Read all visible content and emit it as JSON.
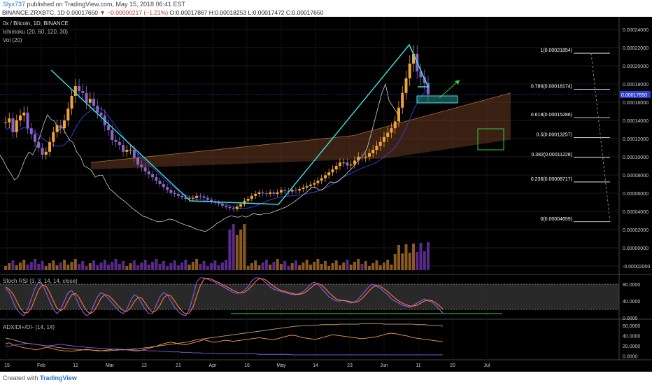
{
  "header": {
    "user": "Slyx737",
    "published": "published on TradingView.com, May 15, 2018 06:41 EST",
    "symbol": "BINANCE:ZRXBTC, 1D",
    "last": "0.00017650",
    "change": "▼ −0.00000217 (−1.21%)",
    "ohlc": "O:0.00017867 H:0.00018253 L:0.00017472 C:0.00017650"
  },
  "legend": {
    "title": "0x / Bitcoin, 1D, BINANCE",
    "ichimoku": "Ichimoku (20, 60, 120, 30)",
    "vol": "Vol (20)",
    "stoch": "Stoch RSI (3, 3, 14, 14, close)",
    "adx": "ADX/DI+/DI- (14, 14)"
  },
  "footer": {
    "created_with": "Created with",
    "brand": "TradingView"
  },
  "colors": {
    "background": "#000000",
    "candle_up": "#f0a43a",
    "candle_down": "#8a64c8",
    "trendline": "#3ce0e0",
    "fib": "#ffffff",
    "cloud": "#6a3a20",
    "stoch_k": "#8a5cf0",
    "stoch_d": "#ff7a3a",
    "support": "#33cc44"
  },
  "chart_data": [
    {
      "type": "candlestick",
      "title": "0x / Bitcoin, 1D, BINANCE",
      "x_ticks": [
        "15",
        "Feb",
        "12",
        "Mar",
        "12",
        "21",
        "Apr",
        "16",
        "May",
        "14",
        "23",
        "Jun",
        "11",
        "20",
        "Jul"
      ],
      "y_ticks": [
        "0.00024000",
        "0.00022000",
        "0.00020000",
        "0.00018000",
        "0.00016000",
        "0.00014000",
        "0.00012000",
        "0.00010000",
        "0.00008000",
        "0.00006000",
        "0.00004000",
        "0.00002000",
        "0.00000000",
        "-0.00002000"
      ],
      "ylim": [
        -2e-05,
        0.00025
      ],
      "last_price_label": "0.00017650",
      "series": [
        {
          "name": "close",
          "values": [
            0.000148,
            0.000152,
            0.000138,
            0.00015,
            0.000155,
            0.000158,
            0.000142,
            0.000136,
            0.000128,
            0.000122,
            0.000115,
            0.000118,
            0.000128,
            0.000138,
            0.000145,
            0.000142,
            0.00015,
            0.000162,
            0.000175,
            0.000185,
            0.00018,
            0.000178,
            0.000168,
            0.000172,
            0.000165,
            0.000158,
            0.000155,
            0.000145,
            0.00014,
            0.00013,
            0.000128,
            0.000125,
            0.000118,
            0.00012,
            0.00012,
            0.000112,
            0.000105,
            0.000102,
            9.8e-05,
            9.5e-05,
            9.2e-05,
            8.85e-05,
            8.5e-05,
            8.2e-05,
            7.9e-05,
            7.6e-05,
            7.5e-05,
            7.3e-05,
            7.15e-05,
            7e-05,
            7.05e-05,
            7.1e-05,
            7.3e-05,
            7.25e-05,
            7.1e-05,
            6.9e-05,
            6.75e-05,
            6.6e-05,
            6.5e-05,
            6.3e-05,
            6.15e-05,
            6.05e-05,
            5.95e-05,
            6.2e-05,
            6.45e-05,
            6.8e-05,
            7e-05,
            7.3e-05,
            7.5e-05,
            7.65e-05,
            7.55e-05,
            7.5e-05,
            7.65e-05,
            7.5e-05,
            7.65e-05,
            7.9e-05,
            7.8e-05,
            7.75e-05,
            7.9e-05,
            7.85e-05,
            8e-05,
            8.15e-05,
            8.3e-05,
            8.45e-05,
            8.6e-05,
            8.85e-05,
            9.1e-05,
            9.4e-05,
            9.7e-05,
            0.0001,
            0.0001035,
            0.000107,
            0.000107,
            0.000104,
            0.000105,
            0.000109,
            0.000113,
            0.000112,
            0.000113,
            0.0001165,
            0.00012,
            0.000124,
            0.000128,
            0.000133,
            0.0001375,
            0.000142,
            0.000149,
            0.000163,
            0.000178,
            0.000193,
            0.000208,
            0.000218,
            0.0002,
            0.000194,
            0.000188,
            0.0001765
          ]
        },
        {
          "name": "fib",
          "values": [
            "1(0.00021854)",
            "0.786(0.00018174)",
            "0.618(0.00015286)",
            "0.5(0.00013257)",
            "0.382(0.00011228)",
            "0.236(0.00008717)",
            "0(0.00004659)"
          ]
        }
      ]
    },
    {
      "type": "line",
      "title": "Stoch RSI (3, 3, 14, 14, close)",
      "y_ticks": [
        "80.0000",
        "40.0000",
        "0.0000"
      ],
      "ylim": [
        0,
        100
      ],
      "series": [
        {
          "name": "K",
          "values": [
            70,
            60,
            40,
            20,
            10,
            5,
            20,
            45,
            70,
            85,
            80,
            60,
            40,
            20,
            10,
            20,
            40,
            60,
            65,
            50,
            30,
            15,
            5,
            10,
            30,
            50,
            60,
            55,
            45,
            35,
            25,
            15,
            10,
            20,
            40,
            55,
            50,
            35,
            20,
            10,
            10,
            30,
            50,
            60,
            55,
            40,
            25,
            15,
            8,
            5,
            20,
            50,
            85,
            95,
            95,
            92,
            88,
            85,
            80,
            75,
            70,
            65,
            60,
            58,
            60,
            65,
            75,
            88,
            95,
            95,
            90,
            82,
            74,
            68,
            65,
            63,
            60,
            58,
            55,
            55,
            58,
            62,
            70,
            80,
            85,
            80,
            70,
            60,
            50,
            45,
            40,
            40,
            42,
            38,
            35,
            38,
            45,
            55,
            65,
            75,
            80,
            75,
            70,
            62,
            55,
            45,
            40,
            35,
            30,
            28,
            25,
            30,
            35,
            40,
            45,
            40,
            38,
            30,
            20,
            12
          ]
        },
        {
          "name": "D",
          "values": [
            74,
            67,
            57,
            40,
            23,
            12,
            12,
            23,
            45,
            67,
            78,
            75,
            60,
            40,
            23,
            17,
            23,
            40,
            55,
            58,
            48,
            32,
            17,
            10,
            15,
            30,
            47,
            55,
            53,
            45,
            35,
            25,
            17,
            15,
            23,
            38,
            48,
            47,
            35,
            22,
            13,
            17,
            30,
            47,
            55,
            52,
            40,
            27,
            16,
            9,
            11,
            25,
            52,
            77,
            92,
            94,
            92,
            88,
            84,
            79,
            75,
            70,
            65,
            61,
            59,
            61,
            67,
            76,
            86,
            93,
            93,
            89,
            82,
            75,
            69,
            65,
            63,
            60,
            58,
            56,
            56,
            58,
            63,
            71,
            78,
            82,
            78,
            70,
            60,
            52,
            45,
            42,
            41,
            40,
            38,
            37,
            39,
            46,
            55,
            65,
            73,
            77,
            75,
            69,
            62,
            54,
            47,
            40,
            35,
            31,
            28,
            28,
            30,
            35,
            40,
            42,
            41,
            36,
            29,
            21
          ]
        }
      ]
    },
    {
      "type": "line",
      "title": "ADX/DI+/DI- (14, 14)",
      "y_ticks": [
        "60.0000",
        "40.0000",
        "20.0000",
        "0.0000"
      ],
      "ylim": [
        -5,
        70
      ],
      "series": [
        {
          "name": "ADX",
          "values": [
            35,
            34,
            32,
            30,
            28,
            26,
            25,
            24,
            23,
            22,
            21,
            20,
            19,
            18,
            17,
            16,
            15,
            14,
            14,
            13,
            13,
            12,
            12,
            12,
            11,
            11,
            10,
            10,
            10,
            11,
            11,
            12,
            12,
            13,
            13,
            14,
            14,
            15,
            16,
            17,
            18,
            19,
            20,
            21,
            22,
            23,
            24,
            25,
            26,
            27,
            28,
            30,
            32,
            33,
            34,
            35,
            36,
            37,
            38,
            39,
            40,
            41,
            42,
            43,
            44,
            45,
            46,
            47,
            48,
            49,
            50,
            51,
            52,
            53,
            54,
            55,
            56,
            57,
            58,
            59,
            59,
            60,
            60,
            60,
            61,
            61,
            62,
            62,
            62,
            62,
            62,
            63,
            63,
            63,
            63,
            63,
            63,
            64,
            64,
            64,
            64,
            64,
            64,
            63,
            63,
            63,
            63,
            63,
            63,
            63,
            63,
            63,
            62,
            62,
            62,
            61,
            61,
            60,
            60,
            59
          ]
        },
        {
          "name": "DI+",
          "values": [
            24,
            26,
            22,
            20,
            18,
            16,
            15,
            14,
            12,
            13,
            15,
            17,
            16,
            14,
            12,
            11,
            10,
            10,
            9,
            10,
            11,
            12,
            13,
            12,
            11,
            10,
            10,
            11,
            12,
            13,
            14,
            13,
            12,
            12,
            11,
            10,
            10,
            11,
            13,
            15,
            17,
            19,
            22,
            24,
            26,
            27,
            26,
            24,
            23,
            22,
            24,
            26,
            28,
            30,
            32,
            30,
            28,
            27,
            28,
            30,
            31,
            30,
            29,
            30,
            31,
            32,
            33,
            34,
            35,
            36,
            35,
            34,
            33,
            32,
            34,
            36,
            38,
            40,
            41,
            40,
            38,
            36,
            35,
            34,
            33,
            34,
            36,
            38,
            40,
            42,
            41,
            40,
            39,
            38,
            37,
            36,
            35,
            34,
            35,
            36,
            37,
            38,
            40,
            42,
            44,
            45,
            44,
            43,
            41,
            40,
            38,
            36,
            35,
            34,
            33,
            32,
            31,
            30,
            29,
            28
          ]
        },
        {
          "name": "DI-",
          "values": [
            20,
            19,
            21,
            22,
            23,
            24,
            25,
            24,
            23,
            22,
            21,
            20,
            20,
            21,
            22,
            23,
            22,
            21,
            20,
            19,
            18,
            18,
            17,
            16,
            16,
            15,
            15,
            15,
            14,
            14,
            13,
            13,
            13,
            12,
            12,
            12,
            11,
            11,
            11,
            10,
            10,
            10,
            9,
            9,
            9,
            8,
            8,
            8,
            7,
            7,
            7,
            6,
            6,
            6,
            5,
            5,
            5,
            5,
            4,
            4,
            4,
            4,
            4,
            4,
            4,
            4,
            4,
            4,
            4,
            3,
            3,
            3,
            3,
            3,
            3,
            3,
            3,
            3,
            2,
            2,
            2,
            2,
            2,
            2,
            2,
            2,
            2,
            2,
            2,
            2,
            2,
            2,
            2,
            2,
            2,
            2,
            2,
            2,
            2,
            2,
            2,
            2,
            2,
            2,
            2,
            2,
            2,
            2,
            2,
            2,
            2,
            2,
            2,
            2,
            2,
            2,
            2,
            2,
            2,
            2
          ]
        }
      ]
    }
  ]
}
